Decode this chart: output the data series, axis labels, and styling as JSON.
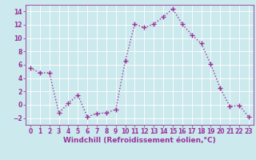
{
  "x": [
    0,
    1,
    2,
    3,
    4,
    5,
    6,
    7,
    8,
    9,
    10,
    11,
    12,
    13,
    14,
    15,
    16,
    17,
    18,
    19,
    20,
    21,
    22,
    23
  ],
  "y": [
    5.5,
    4.8,
    4.8,
    -1.2,
    0.2,
    1.5,
    -1.8,
    -1.3,
    -1.2,
    -0.7,
    6.6,
    12.1,
    11.6,
    12.1,
    13.2,
    14.4,
    12.1,
    10.5,
    9.2,
    6.1,
    2.5,
    -0.2,
    -0.1,
    -1.8
  ],
  "line_color": "#993399",
  "marker": "+",
  "marker_size": 4,
  "line_width": 1.0,
  "xlabel": "Windchill (Refroidissement éolien,°C)",
  "xlabel_fontsize": 6.5,
  "bg_color": "#cce9ed",
  "grid_color": "#ffffff",
  "tick_label_color": "#993399",
  "tick_label_fontsize": 5.5,
  "xlabel_color": "#993399",
  "ylim": [
    -3,
    15
  ],
  "yticks": [
    -2,
    0,
    2,
    4,
    6,
    8,
    10,
    12,
    14
  ],
  "xticks": [
    0,
    1,
    2,
    3,
    4,
    5,
    6,
    7,
    8,
    9,
    10,
    11,
    12,
    13,
    14,
    15,
    16,
    17,
    18,
    19,
    20,
    21,
    22,
    23
  ]
}
